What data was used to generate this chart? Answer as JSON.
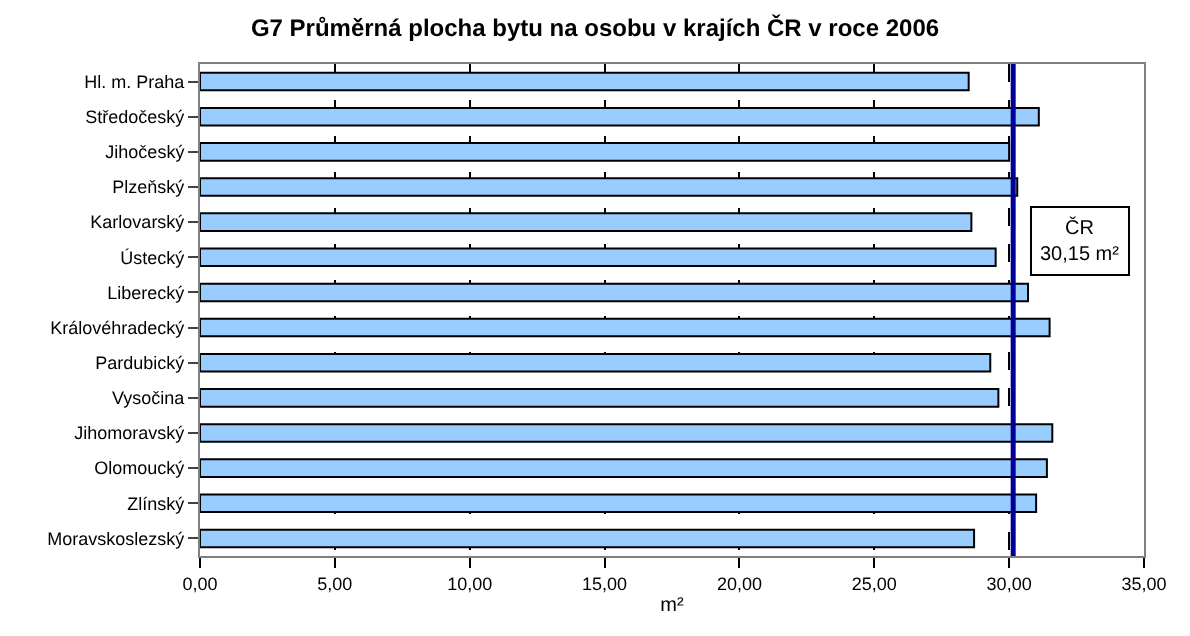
{
  "chart_data": {
    "type": "bar",
    "orientation": "horizontal",
    "title": "G7 Průměrná plocha bytu na osobu v krajích ČR v roce 2006",
    "xlabel": "m²",
    "categories": [
      "Hl. m. Praha",
      "Středočeský",
      "Jihočeský",
      "Plzeňský",
      "Karlovarský",
      "Ústecký",
      "Liberecký",
      "Královéhradecký",
      "Pardubický",
      "Vysočina",
      "Jihomoravský",
      "Olomoucký",
      "Zlínský",
      "Moravskoslezský"
    ],
    "values": [
      28.5,
      31.1,
      30.0,
      30.3,
      28.6,
      29.5,
      30.7,
      31.5,
      29.3,
      29.6,
      31.6,
      31.4,
      31.0,
      28.7
    ],
    "color": "#99ccff",
    "xlim": [
      0,
      35
    ],
    "xticks": [
      {
        "value": 0,
        "label": "0,00"
      },
      {
        "value": 5,
        "label": "5,00"
      },
      {
        "value": 10,
        "label": "10,00"
      },
      {
        "value": 15,
        "label": "15,00"
      },
      {
        "value": 20,
        "label": "20,00"
      },
      {
        "value": 25,
        "label": "25,00"
      },
      {
        "value": 30,
        "label": "30,00"
      },
      {
        "value": 35,
        "label": "35,00"
      }
    ],
    "grid": "x",
    "ref_lines": [
      {
        "axis": "x",
        "value": 30.15,
        "label": "ČR\n30,15 m²",
        "color": "#000099",
        "line_style": "solid"
      }
    ],
    "legend": false
  }
}
